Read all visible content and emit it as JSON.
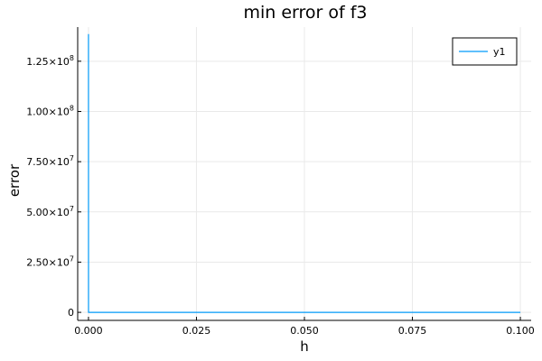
{
  "chart_data": {
    "type": "line",
    "title": "min error of f3",
    "xlabel": "h",
    "ylabel": "error",
    "xlim": [
      -0.0025,
      0.1025
    ],
    "ylim": [
      -4000000,
      142000000
    ],
    "x_ticks": [
      0.0,
      0.025,
      0.05,
      0.075,
      0.1
    ],
    "x_tick_labels": [
      "0.000",
      "0.025",
      "0.050",
      "0.075",
      "0.100"
    ],
    "y_ticks": [
      0,
      25000000,
      50000000,
      75000000,
      100000000,
      125000000
    ],
    "y_tick_labels": [
      {
        "mant": "0",
        "exp": ""
      },
      {
        "mant": "2.50×10",
        "exp": "7"
      },
      {
        "mant": "5.00×10",
        "exp": "7"
      },
      {
        "mant": "7.50×10",
        "exp": "7"
      },
      {
        "mant": "1.00×10",
        "exp": "8"
      },
      {
        "mant": "1.25×10",
        "exp": "8"
      }
    ],
    "grid": true,
    "legend_position": "top-right",
    "series": [
      {
        "name": "y1",
        "color": "#009af9",
        "x": [
          1e-06,
          1e-05,
          0.0001,
          0.001,
          0.01,
          0.1
        ],
        "y": [
          138500000,
          1000,
          10,
          0.1,
          0.01,
          0.001
        ]
      }
    ]
  }
}
